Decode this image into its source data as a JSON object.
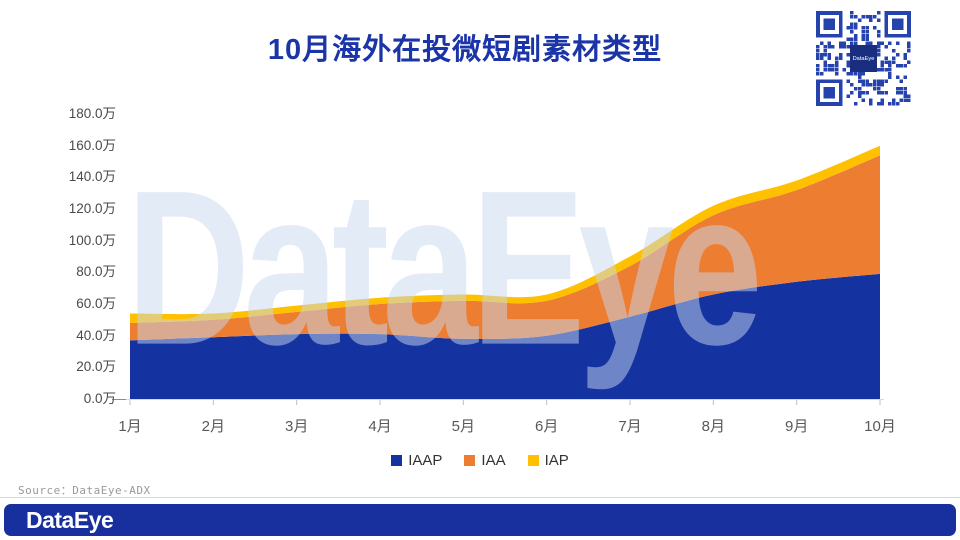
{
  "title": "10月海外在投微短剧素材类型",
  "source_text": "Source：DataEye-ADX",
  "footer": {
    "logo_text": "DataEye"
  },
  "qr": {
    "center_label": "DataEye"
  },
  "colors": {
    "title": "#1b35a8",
    "footer_bar": "#182f9e",
    "qr_module": "#2643ad",
    "qr_center": "#1a2e80",
    "axis_line": "#d9d9d9",
    "tick": "#bfbfbf",
    "y_text": "#4a4a4a",
    "x_text": "#595959",
    "watermark_text": "DataEye"
  },
  "chart_data": {
    "type": "area",
    "stacked": true,
    "smooth": true,
    "title": "10月海外在投微短剧素材类型",
    "unit": "万",
    "categories": [
      "1月",
      "2月",
      "3月",
      "4月",
      "5月",
      "6月",
      "7月",
      "8月",
      "9月",
      "10月"
    ],
    "series": [
      {
        "name": "IAAP",
        "color": "#1533a0",
        "values": [
          37,
          39,
          41,
          41,
          38,
          40,
          52,
          66,
          74,
          79
        ]
      },
      {
        "name": "IAA",
        "color": "#ed7d31",
        "values": [
          11,
          11,
          14,
          19,
          24,
          22,
          32,
          50,
          58,
          75
        ]
      },
      {
        "name": "IAP",
        "color": "#ffc000",
        "values": [
          6,
          4,
          4,
          4,
          4,
          4,
          6,
          6,
          6,
          6
        ]
      }
    ],
    "stacked_totals": [
      54,
      54,
      59,
      64,
      66,
      66,
      90,
      122,
      138,
      160
    ],
    "y_ticks": [
      "0.0万",
      "20.0万",
      "40.0万",
      "60.0万",
      "80.0万",
      "100.0万",
      "120.0万",
      "140.0万",
      "160.0万",
      "180.0万"
    ],
    "ylim": [
      0,
      180
    ],
    "legend_position": "bottom",
    "grid": false,
    "watermark": "DataEye"
  }
}
